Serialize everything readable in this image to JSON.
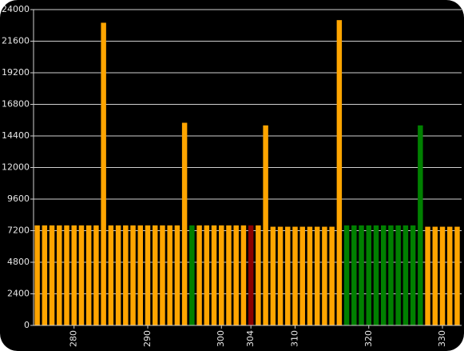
{
  "chart_data": {
    "type": "bar",
    "x": [
      275,
      276,
      277,
      278,
      279,
      280,
      281,
      282,
      283,
      284,
      285,
      286,
      287,
      288,
      289,
      290,
      291,
      292,
      293,
      294,
      295,
      296,
      297,
      298,
      299,
      300,
      301,
      302,
      303,
      304,
      305,
      306,
      307,
      308,
      309,
      310,
      311,
      312,
      313,
      314,
      315,
      316,
      317,
      318,
      319,
      320,
      321,
      322,
      323,
      324,
      325,
      326,
      327,
      328,
      329,
      330,
      331,
      332
    ],
    "values": [
      7600,
      7600,
      7600,
      7600,
      7600,
      7600,
      7600,
      7600,
      7600,
      23000,
      7600,
      7600,
      7600,
      7600,
      7600,
      7600,
      7600,
      7600,
      7600,
      7600,
      15400,
      7600,
      7600,
      7600,
      7600,
      7600,
      7600,
      7600,
      7600,
      7600,
      7600,
      15200,
      7500,
      7500,
      7500,
      7500,
      7500,
      7500,
      7500,
      7500,
      7500,
      23200,
      7600,
      7600,
      7600,
      7600,
      7600,
      7600,
      7600,
      7600,
      7600,
      7600,
      15200,
      7500,
      7500,
      7500,
      7500,
      7500
    ],
    "colors": [
      "#ffa500",
      "#ffa500",
      "#ffa500",
      "#ffa500",
      "#ffa500",
      "#ffa500",
      "#ffa500",
      "#ffa500",
      "#ffa500",
      "#ffa500",
      "#ffa500",
      "#ffa500",
      "#ffa500",
      "#ffa500",
      "#ffa500",
      "#ffa500",
      "#ffa500",
      "#ffa500",
      "#ffa500",
      "#ffa500",
      "#ffa500",
      "#008000",
      "#ffa500",
      "#ffa500",
      "#ffa500",
      "#ffa500",
      "#ffa500",
      "#ffa500",
      "#ffa500",
      "#8b0000",
      "#ffa500",
      "#ffa500",
      "#ffa500",
      "#ffa500",
      "#ffa500",
      "#ffa500",
      "#ffa500",
      "#ffa500",
      "#ffa500",
      "#ffa500",
      "#ffa500",
      "#ffa500",
      "#008000",
      "#008000",
      "#008000",
      "#008000",
      "#008000",
      "#008000",
      "#008000",
      "#008000",
      "#008000",
      "#008000",
      "#008000",
      "#ffa500",
      "#ffa500",
      "#ffa500",
      "#ffa500",
      "#ffa500"
    ],
    "xlim": [
      274.5,
      332.6
    ],
    "xticks": [
      280,
      290,
      300,
      304,
      310,
      320,
      330
    ],
    "ylim": [
      0,
      24000
    ],
    "yticks": [
      0,
      2400,
      4800,
      7200,
      9600,
      12000,
      14400,
      16800,
      19200,
      21600,
      24000
    ],
    "grid": true
  }
}
